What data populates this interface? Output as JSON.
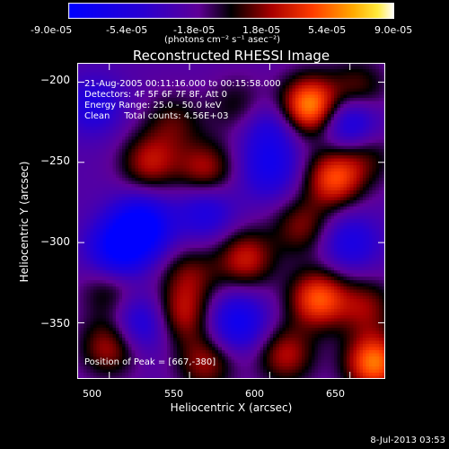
{
  "colorbar": {
    "tick_labels": [
      "-9.0e-05",
      "-5.4e-05",
      "-1.8e-05",
      "1.8e-05",
      "5.4e-05",
      "9.0e-05"
    ],
    "unit_label": "(photons cm⁻² s⁻¹ asec⁻²)",
    "range": [
      -9e-05,
      9e-05
    ]
  },
  "chart_data": {
    "type": "heatmap",
    "title": "Reconstructed RHESSI Image",
    "xlabel": "Heliocentric X (arcsec)",
    "ylabel": "Heliocentric Y (arcsec)",
    "xlim": [
      480,
      672
    ],
    "ylim": [
      -385,
      -188
    ],
    "xticks": [
      500,
      550,
      600,
      650
    ],
    "yticks": [
      -200,
      -250,
      -300,
      -350
    ],
    "xtick_labels": [
      "500",
      "550",
      "600",
      "650"
    ],
    "ytick_labels": [
      "−200",
      "−250",
      "−300",
      "−350"
    ],
    "colormap": "RHESSI blue-purple-red-yellow",
    "peak_position": [
      667,
      -380
    ],
    "annotations": [
      "21-Aug-2005 00:11:16.000 to 00:15:58.000",
      "Detectors: 4F 5F 6F 7F 8F, Att 0",
      "Energy Range: 25.0 - 50.0 keV",
      "Clean     Total counts: 4.56E+03",
      "Position of Peak = [667,-380]"
    ],
    "blobs": [
      {
        "x": 625,
        "y": -215,
        "v": 1.0
      },
      {
        "x": 655,
        "y": -205,
        "v": 0.45
      },
      {
        "x": 640,
        "y": -260,
        "v": 0.75
      },
      {
        "x": 525,
        "y": -250,
        "v": 0.55
      },
      {
        "x": 560,
        "y": -255,
        "v": 0.55
      },
      {
        "x": 540,
        "y": -225,
        "v": 0.35
      },
      {
        "x": 580,
        "y": -215,
        "v": 0.3
      },
      {
        "x": 585,
        "y": -310,
        "v": 0.6
      },
      {
        "x": 620,
        "y": -290,
        "v": 0.45
      },
      {
        "x": 550,
        "y": -320,
        "v": 0.4
      },
      {
        "x": 500,
        "y": -330,
        "v": 0.35
      },
      {
        "x": 545,
        "y": -345,
        "v": 0.55
      },
      {
        "x": 630,
        "y": -335,
        "v": 0.8
      },
      {
        "x": 660,
        "y": -340,
        "v": 0.45
      },
      {
        "x": 500,
        "y": -365,
        "v": 0.55
      },
      {
        "x": 560,
        "y": -375,
        "v": 0.5
      },
      {
        "x": 610,
        "y": -370,
        "v": 0.55
      },
      {
        "x": 665,
        "y": -375,
        "v": 0.9
      },
      {
        "x": 660,
        "y": -245,
        "v": 0.35
      },
      {
        "x": 520,
        "y": -290,
        "v": -0.85
      },
      {
        "x": 505,
        "y": -305,
        "v": -0.7
      },
      {
        "x": 650,
        "y": -225,
        "v": -0.65
      },
      {
        "x": 580,
        "y": -350,
        "v": -0.6
      },
      {
        "x": 560,
        "y": -280,
        "v": -0.45
      },
      {
        "x": 600,
        "y": -255,
        "v": -0.45
      },
      {
        "x": 490,
        "y": -215,
        "v": -0.4
      },
      {
        "x": 520,
        "y": -350,
        "v": -0.5
      },
      {
        "x": 650,
        "y": -300,
        "v": -0.45
      },
      {
        "x": 600,
        "y": -230,
        "v": -0.4
      }
    ]
  },
  "timestamp": "8-Jul-2013 03:53"
}
